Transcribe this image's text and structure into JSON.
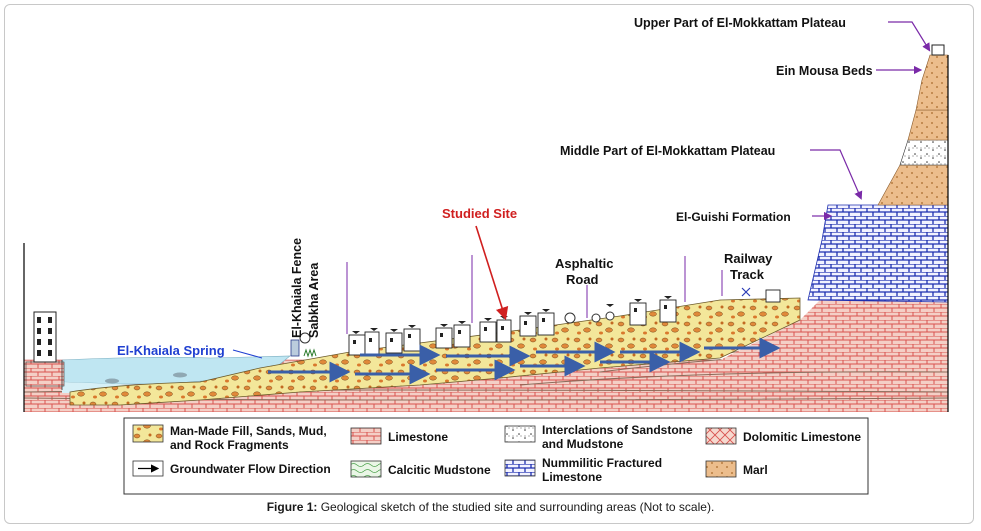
{
  "labels": {
    "upper_plateau": "Upper Part of El-Mokkattam Plateau",
    "ein_mousa": "Ein Mousa Beds",
    "middle_plateau": "Middle Part of El-Mokkattam Plateau",
    "el_guishi": "El-Guishi Formation",
    "studied_site": "Studied Site",
    "asphaltic_road": "Asphaltic\nRoad",
    "railway_track": "Railway\nTrack",
    "khaiala_fence": "El-Khaiala Fence",
    "sabkha_area": "Sabkha Area",
    "khaiala_spring": "El-Khaiala Spring"
  },
  "legend": {
    "fill": "Man-Made Fill, Sands, Mud, and Rock Fragments",
    "limestone": "Limestone",
    "interclations": "Interclations of Sandstone and Mudstone",
    "dolomitic": "Dolomitic Limestone",
    "flow": "Groundwater Flow Direction",
    "calcitic": "Calcitic Mudstone",
    "nummilitic": "Nummilitic Fractured Limestone",
    "marl": "Marl"
  },
  "caption": {
    "prefix": "Figure 1:",
    "text": " Geological sketch of the studied site and surrounding areas (Not to scale)."
  },
  "colors": {
    "limestone": "#e06a6a",
    "limestone_bg": "#f3c9c0",
    "fill": "#f3e79a",
    "fill_dots": "#e08a3a",
    "marl": "#e9b98a",
    "nummilitic": "#2a3bb5",
    "spring_water": "#bfe6f2",
    "flow_arrow": "#3a5fa8",
    "annotation_line": "#7a2aa8",
    "studied_site": "#d01f1f",
    "spring_label": "#1f3fd1"
  }
}
